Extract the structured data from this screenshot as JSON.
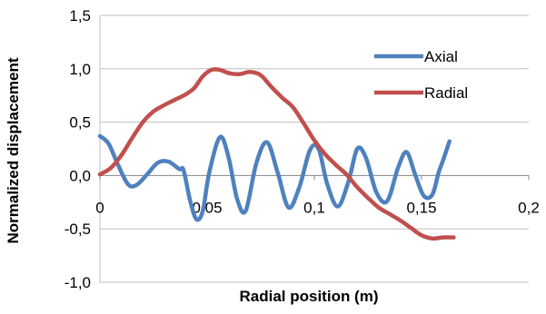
{
  "chart_data": {
    "type": "line",
    "xlabel": "Radial position (m)",
    "ylabel": "Normalized displacement",
    "xlim": [
      0,
      0.2
    ],
    "ylim": [
      -1.0,
      1.5
    ],
    "x_ticks": [
      0,
      0.05,
      0.1,
      0.15,
      0.2
    ],
    "x_tick_labels": [
      "0",
      "0,05",
      "0,1",
      "0,15",
      "0,2"
    ],
    "y_ticks": [
      1.5,
      1.0,
      0.5,
      0.0,
      -0.5,
      -1.0
    ],
    "y_tick_labels": [
      "1,5",
      "1,0",
      "0,5",
      "0,0",
      "-0,5",
      "-1,0"
    ],
    "grid": "horizontal",
    "legend_position": "right",
    "series": [
      {
        "name": "Axial",
        "color": "#4F81BD",
        "points": [
          [
            0,
            0.37
          ],
          [
            0.004,
            0.3
          ],
          [
            0.008,
            0.12
          ],
          [
            0.013,
            -0.08
          ],
          [
            0.017,
            -0.09
          ],
          [
            0.022,
            0.01
          ],
          [
            0.027,
            0.12
          ],
          [
            0.032,
            0.13
          ],
          [
            0.037,
            0.06
          ],
          [
            0.039,
            0.05
          ],
          [
            0.042,
            -0.23
          ],
          [
            0.045,
            -0.41
          ],
          [
            0.048,
            -0.33
          ],
          [
            0.051,
            0.03
          ],
          [
            0.056,
            0.36
          ],
          [
            0.06,
            0.17
          ],
          [
            0.064,
            -0.22
          ],
          [
            0.068,
            -0.33
          ],
          [
            0.073,
            0.12
          ],
          [
            0.078,
            0.31
          ],
          [
            0.083,
            0.02
          ],
          [
            0.088,
            -0.3
          ],
          [
            0.093,
            -0.11
          ],
          [
            0.098,
            0.24
          ],
          [
            0.102,
            0.25
          ],
          [
            0.106,
            -0.08
          ],
          [
            0.111,
            -0.29
          ],
          [
            0.116,
            -0.05
          ],
          [
            0.12,
            0.25
          ],
          [
            0.124,
            0.17
          ],
          [
            0.129,
            -0.16
          ],
          [
            0.134,
            -0.24
          ],
          [
            0.139,
            0.07
          ],
          [
            0.143,
            0.22
          ],
          [
            0.147,
            0.01
          ],
          [
            0.151,
            -0.19
          ],
          [
            0.155,
            -0.18
          ],
          [
            0.158,
            0.03
          ],
          [
            0.16,
            0.14
          ],
          [
            0.163,
            0.32
          ]
        ]
      },
      {
        "name": "Radial",
        "color": "#C0504D",
        "points": [
          [
            0,
            0.01
          ],
          [
            0.005,
            0.07
          ],
          [
            0.01,
            0.19
          ],
          [
            0.015,
            0.35
          ],
          [
            0.02,
            0.5
          ],
          [
            0.025,
            0.6
          ],
          [
            0.03,
            0.66
          ],
          [
            0.035,
            0.71
          ],
          [
            0.04,
            0.76
          ],
          [
            0.044,
            0.82
          ],
          [
            0.048,
            0.93
          ],
          [
            0.052,
            0.99
          ],
          [
            0.056,
            0.99
          ],
          [
            0.06,
            0.96
          ],
          [
            0.065,
            0.95
          ],
          [
            0.07,
            0.97
          ],
          [
            0.075,
            0.94
          ],
          [
            0.08,
            0.83
          ],
          [
            0.085,
            0.73
          ],
          [
            0.09,
            0.64
          ],
          [
            0.095,
            0.49
          ],
          [
            0.1,
            0.33
          ],
          [
            0.105,
            0.2
          ],
          [
            0.11,
            0.1
          ],
          [
            0.115,
            0.01
          ],
          [
            0.12,
            -0.11
          ],
          [
            0.125,
            -0.21
          ],
          [
            0.13,
            -0.3
          ],
          [
            0.135,
            -0.36
          ],
          [
            0.14,
            -0.42
          ],
          [
            0.145,
            -0.49
          ],
          [
            0.15,
            -0.56
          ],
          [
            0.155,
            -0.59
          ],
          [
            0.16,
            -0.58
          ],
          [
            0.165,
            -0.58
          ]
        ]
      }
    ]
  }
}
